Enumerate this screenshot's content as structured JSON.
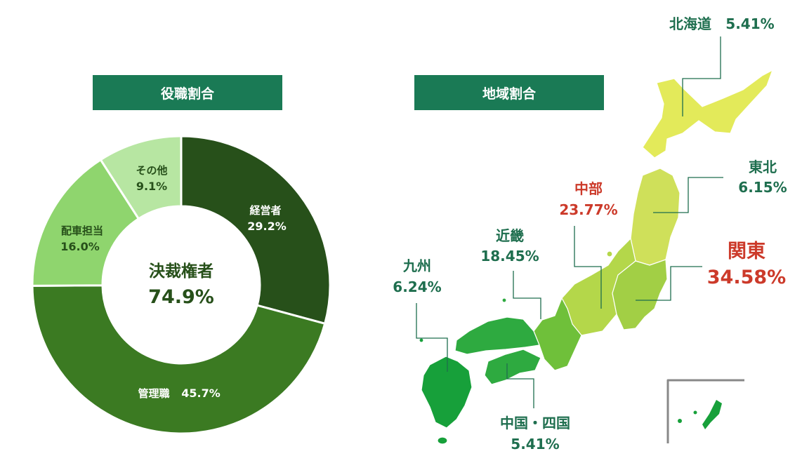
{
  "headers": {
    "role": "役職割合",
    "region": "地域割合"
  },
  "colors": {
    "header_bg": "#1a7a55",
    "green_label": "#1e6e4e",
    "red_label": "#cc3a2a",
    "donut": [
      "#27501a",
      "#3b7a22",
      "#8fd56e",
      "#b7e6a2"
    ]
  },
  "chart_data": [
    {
      "type": "pie",
      "variant": "donut",
      "title": "役職割合",
      "center_label": "決裁権者",
      "center_value": "74.9%",
      "slices": [
        {
          "name": "経営者",
          "value": 29.2,
          "label": "29.2%"
        },
        {
          "name": "管理職",
          "value": 45.7,
          "label": "45.7%"
        },
        {
          "name": "配車担当",
          "value": 16.0,
          "label": "16.0%"
        },
        {
          "name": "その他",
          "value": 9.1,
          "label": "9.1%"
        }
      ]
    },
    {
      "type": "table",
      "title": "地域割合",
      "regions": [
        {
          "name": "北海道",
          "value": 5.41,
          "label": "5.41%"
        },
        {
          "name": "東北",
          "value": 6.15,
          "label": "6.15%"
        },
        {
          "name": "関東",
          "value": 34.58,
          "label": "34.58%"
        },
        {
          "name": "中部",
          "value": 23.77,
          "label": "23.77%"
        },
        {
          "name": "近畿",
          "value": 18.45,
          "label": "18.45%"
        },
        {
          "name": "中国・四国",
          "value": 5.41,
          "label": "5.41%"
        },
        {
          "name": "九州",
          "value": 6.24,
          "label": "6.24%"
        }
      ]
    }
  ]
}
